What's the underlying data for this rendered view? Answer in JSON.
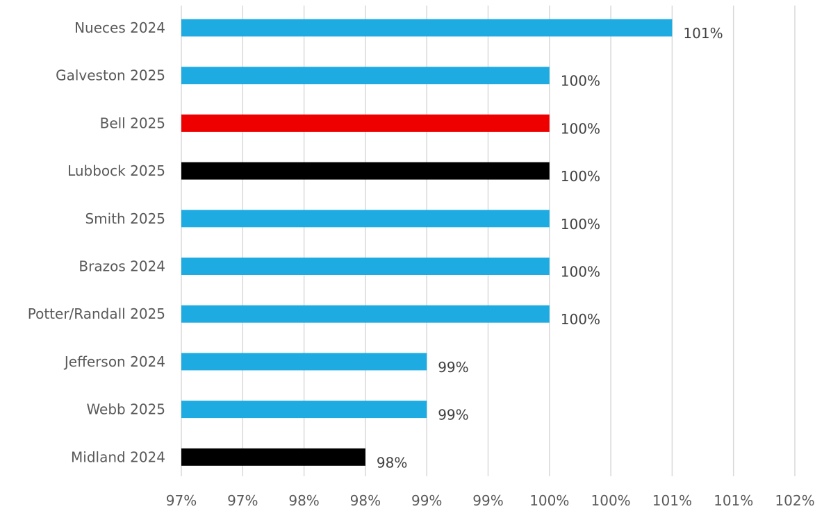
{
  "chart_data": {
    "type": "bar",
    "orientation": "horizontal",
    "title": "",
    "xlabel": "",
    "ylabel": "",
    "xlim": [
      0.97,
      1.02
    ],
    "x_ticks": [
      0.97,
      0.975,
      0.98,
      0.985,
      0.99,
      0.995,
      1.0,
      1.005,
      1.01,
      1.015,
      1.02
    ],
    "x_tick_labels": [
      "97%",
      "97%",
      "98%",
      "98%",
      "99%",
      "99%",
      "100%",
      "100%",
      "101%",
      "101%",
      "102%"
    ],
    "grid": "vertical",
    "legend": "none",
    "categories": [
      "Nueces 2024",
      "Galveston 2025",
      "Bell 2025",
      "Lubbock 2025",
      "Smith 2025",
      "Brazos 2024",
      "Potter/Randall 2025",
      "Jefferson 2024",
      "Webb 2025",
      "Midland 2024"
    ],
    "values": [
      1.01,
      1.0,
      1.0,
      1.0,
      1.0,
      1.0,
      1.0,
      0.99,
      0.99,
      0.985
    ],
    "data_labels": [
      "101%",
      "100%",
      "100%",
      "100%",
      "100%",
      "100%",
      "100%",
      "99%",
      "99%",
      "98%"
    ],
    "bar_colors": [
      "#1DABE2",
      "#1DABE2",
      "#EE0000",
      "#000000",
      "#1DABE2",
      "#1DABE2",
      "#1DABE2",
      "#1DABE2",
      "#1DABE2",
      "#000000"
    ]
  }
}
